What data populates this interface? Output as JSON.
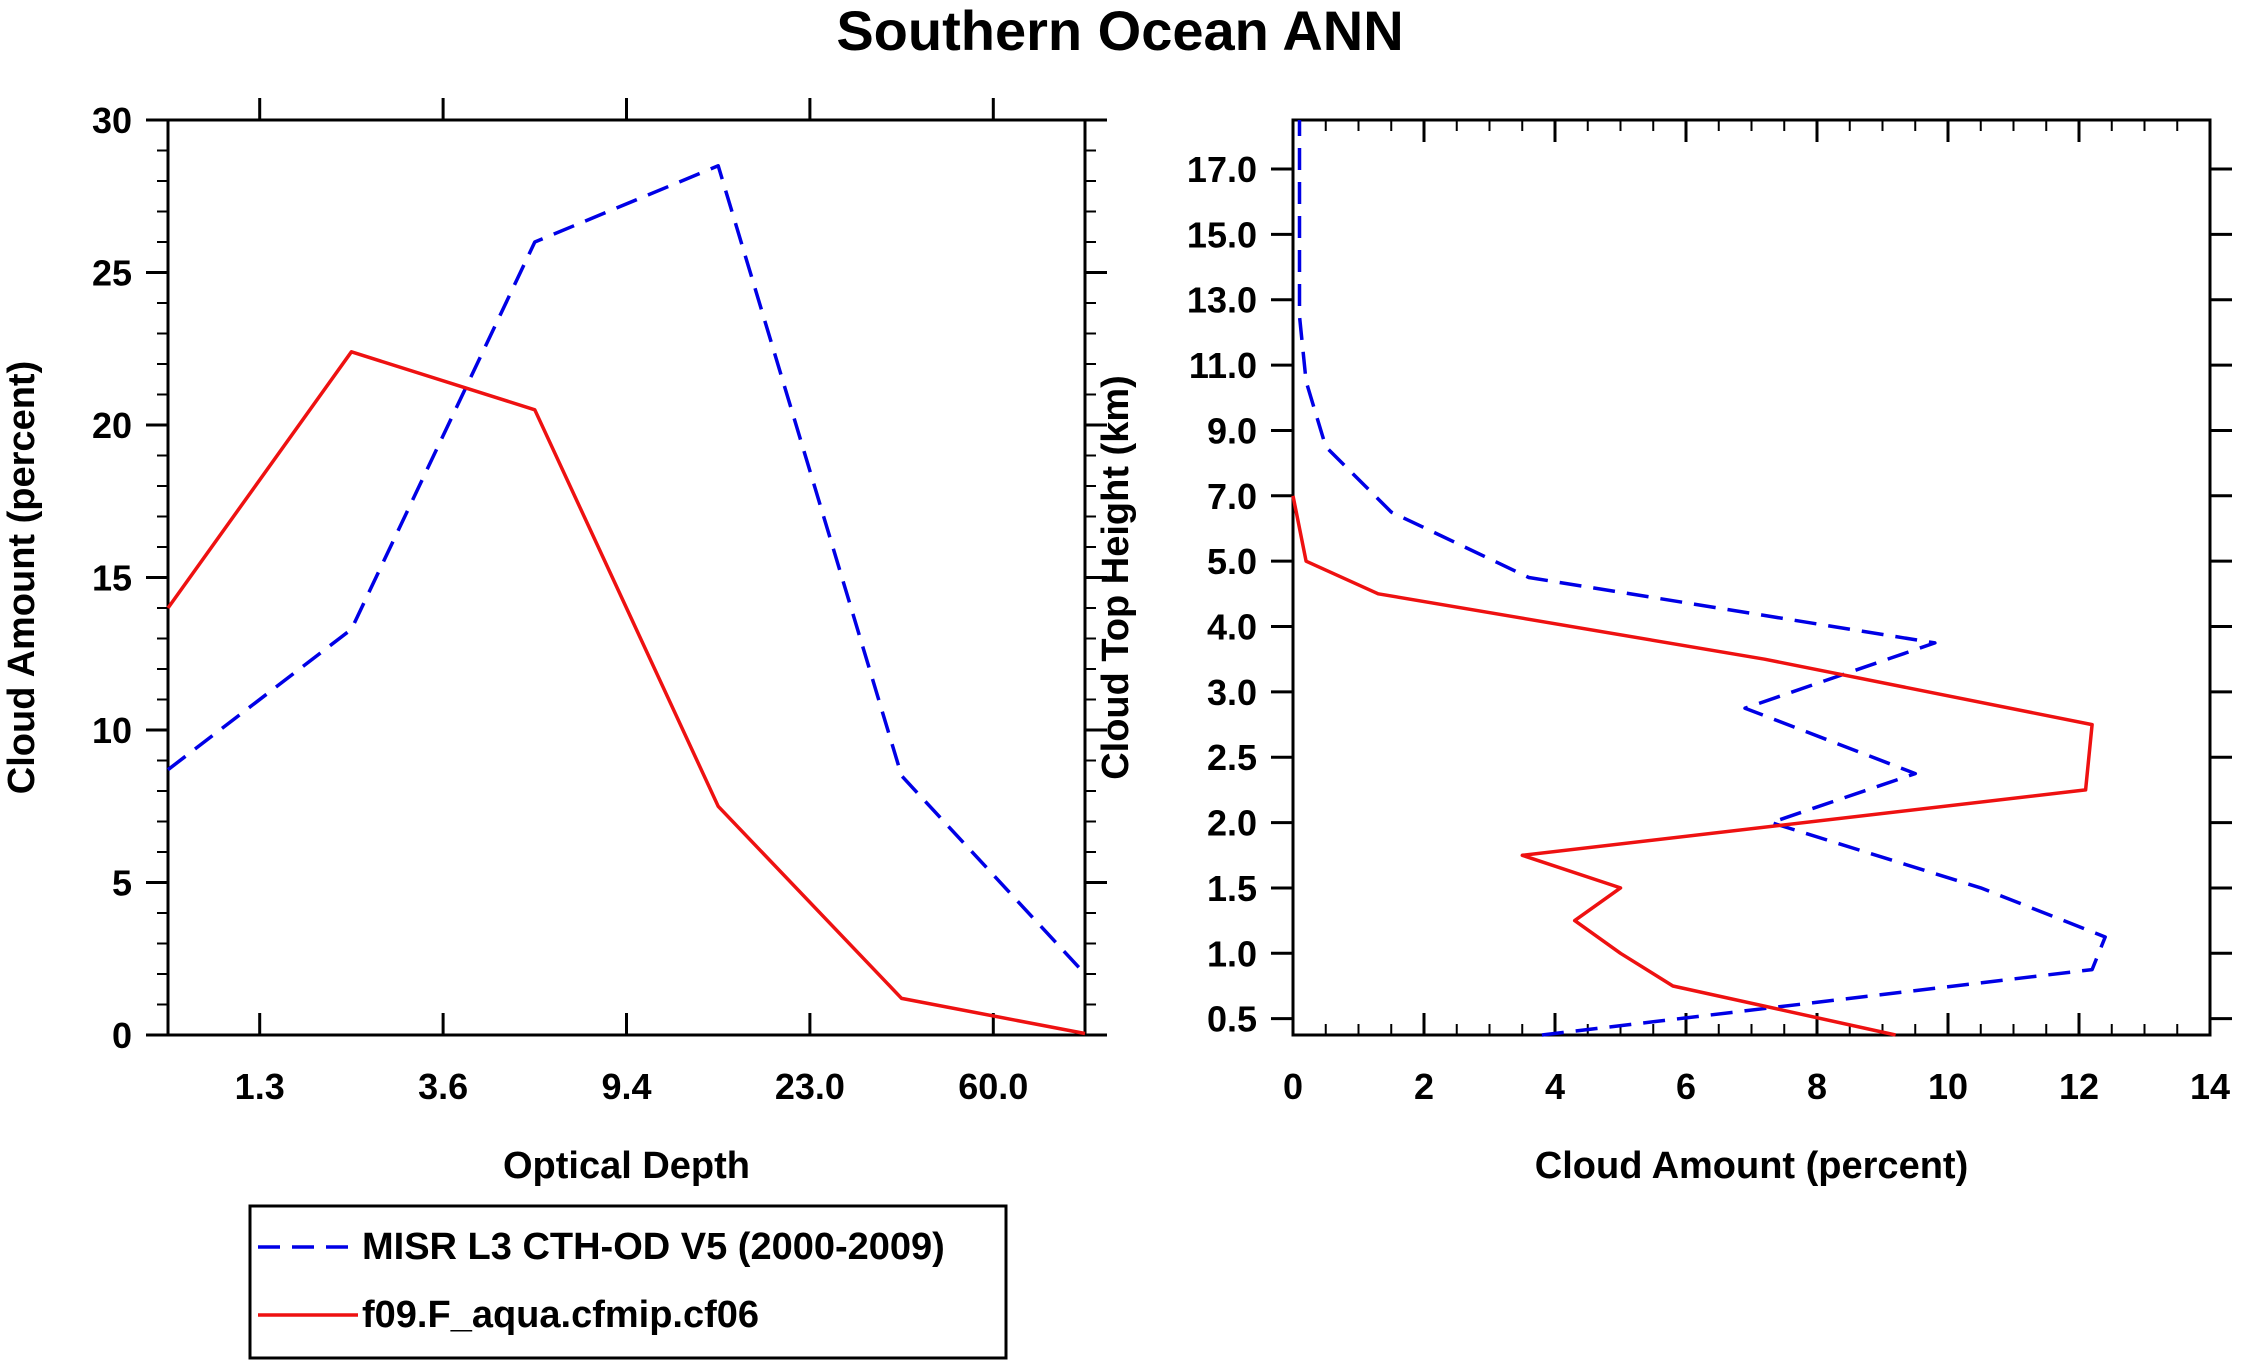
{
  "figure": {
    "title": "Southern Ocean ANN"
  },
  "colors": {
    "misr": "#0000e6",
    "model": "#ee1111",
    "axis": "#000000"
  },
  "chart_data": [
    {
      "type": "line",
      "id": "left",
      "title": "",
      "xlabel": "Optical Depth",
      "ylabel": "Cloud Amount (percent)",
      "x_index": [
        0.5,
        1.5,
        2.5,
        3.5,
        4.5,
        5.5
      ],
      "x_tick_index": [
        1,
        2,
        3,
        4,
        5
      ],
      "x_tick_labels": [
        "1.3",
        "3.6",
        "9.4",
        "23.0",
        "60.0"
      ],
      "xlim": [
        0.5,
        5.5
      ],
      "ylim": [
        0,
        30
      ],
      "y_ticks": [
        0,
        5,
        10,
        15,
        20,
        25,
        30
      ],
      "y_tick_labels": [
        "0",
        "5",
        "10",
        "15",
        "20",
        "25",
        "30"
      ],
      "series": [
        {
          "name": "MISR L3 CTH-OD V5 (2000-2009)",
          "style": "dashed",
          "color": "#0000e6",
          "values": [
            8.7,
            13.3,
            26.0,
            28.5,
            8.5,
            2.0
          ]
        },
        {
          "name": "f09.F_aqua.cfmip.cf06",
          "style": "solid",
          "color": "#ee1111",
          "values": [
            14.0,
            22.4,
            20.5,
            7.5,
            1.2,
            0.05
          ]
        }
      ]
    },
    {
      "type": "line",
      "id": "right",
      "title": "",
      "xlabel": "Cloud Amount (percent)",
      "ylabel": "Cloud Top Height (km)",
      "xlim": [
        0,
        14
      ],
      "x_ticks": [
        0,
        2,
        4,
        6,
        8,
        10,
        12,
        14
      ],
      "x_tick_labels": [
        "0",
        "2",
        "4",
        "6",
        "8",
        "10",
        "12",
        "14"
      ],
      "y_index_range": [
        0.25,
        14.25
      ],
      "y_tick_index": [
        0.5,
        1.5,
        2.5,
        3.5,
        4.5,
        5.5,
        6.5,
        7.5,
        8.5,
        9.5,
        10.5,
        11.5,
        12.5,
        13.5
      ],
      "y_tick_labels": [
        "0.5",
        "1.0",
        "1.5",
        "2.0",
        "2.5",
        "3.0",
        "4.0",
        "5.0",
        "7.0",
        "9.0",
        "11.0",
        "13.0",
        "15.0",
        "17.0"
      ],
      "series": [
        {
          "name": "MISR L3 CTH-OD V5 (2000-2009)",
          "style": "dashed",
          "color": "#0000e6",
          "points": [
            [
              3.8,
              0.25
            ],
            [
              12.2,
              1.25
            ],
            [
              12.4,
              1.75
            ],
            [
              10.5,
              2.5
            ],
            [
              7.3,
              3.5
            ],
            [
              9.5,
              4.25
            ],
            [
              6.9,
              5.25
            ],
            [
              9.8,
              6.25
            ],
            [
              3.6,
              7.25
            ],
            [
              1.5,
              8.25
            ],
            [
              0.5,
              9.25
            ],
            [
              0.2,
              10.25
            ],
            [
              0.1,
              11.25
            ],
            [
              0.1,
              12.25
            ],
            [
              0.1,
              13.25
            ],
            [
              0.1,
              14.25
            ]
          ]
        },
        {
          "name": "f09.F_aqua.cfmip.cf06",
          "style": "solid",
          "color": "#ee1111",
          "points": [
            [
              9.2,
              0.25
            ],
            [
              5.8,
              1.0
            ],
            [
              5.0,
              1.5
            ],
            [
              4.3,
              2.0
            ],
            [
              5.0,
              2.5
            ],
            [
              3.5,
              3.0
            ],
            [
              12.1,
              4.0
            ],
            [
              12.2,
              5.0
            ],
            [
              7.2,
              6.0
            ],
            [
              1.3,
              7.0
            ],
            [
              0.2,
              7.5
            ],
            [
              0.0,
              8.5
            ]
          ]
        }
      ]
    }
  ],
  "legend": {
    "items": [
      {
        "label": "MISR L3 CTH-OD V5 (2000-2009)",
        "style": "dashed",
        "color": "#0000e6"
      },
      {
        "label": "f09.F_aqua.cfmip.cf06",
        "style": "solid",
        "color": "#ee1111"
      }
    ]
  }
}
